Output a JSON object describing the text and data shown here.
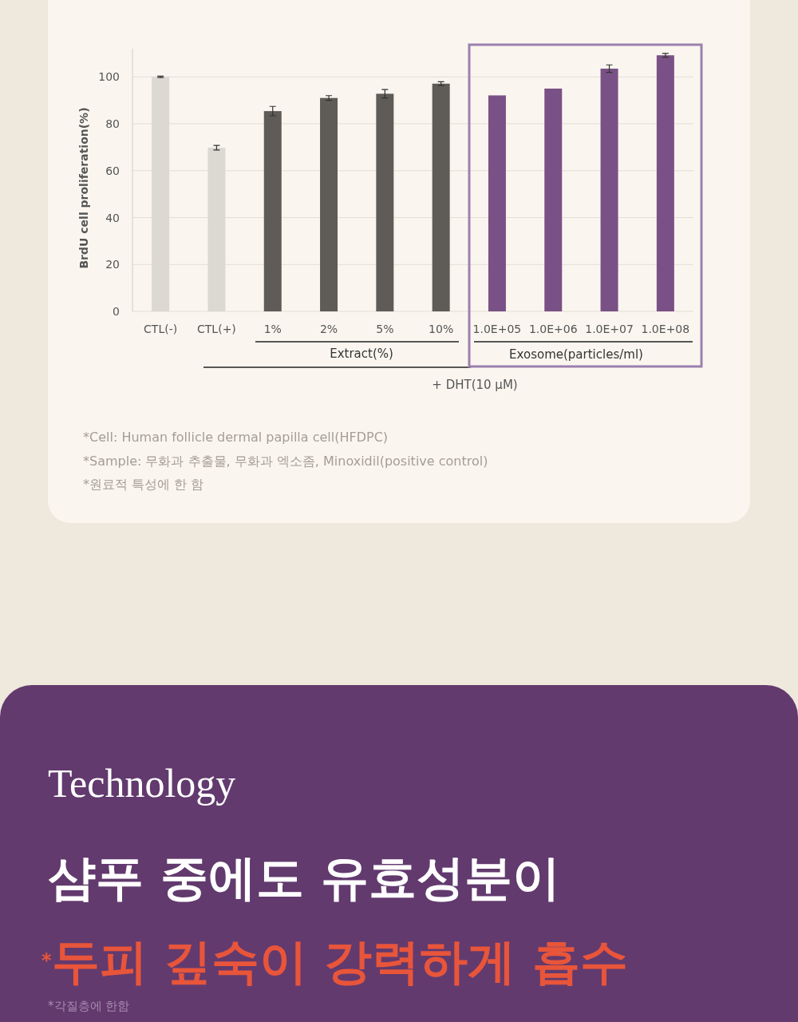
{
  "chart_data": {
    "type": "bar",
    "ylabel": "BrdU cell proliferation(%)",
    "categories": [
      "CTL(-)",
      "CTL(+)",
      "1%",
      "2%",
      "5%",
      "10%",
      "1.0E+05",
      "1.0E+06",
      "1.0E+07",
      "1.0E+08"
    ],
    "values": [
      100,
      69.8,
      85.4,
      91.0,
      92.8,
      97.1,
      92.1,
      95.0,
      103.5,
      109.2
    ],
    "errors": [
      0.3,
      1.0,
      2.0,
      1.0,
      1.8,
      0.8,
      null,
      null,
      1.6,
      0.8
    ],
    "colors": [
      "#dcd8d2",
      "#dcd8d2",
      "#5f5c58",
      "#5f5c58",
      "#5f5c58",
      "#5f5c58",
      "#7a5186",
      "#7a5186",
      "#7a5186",
      "#7a5186"
    ],
    "ylim": [
      0,
      112
    ],
    "yticks": [
      0,
      20,
      40,
      60,
      80,
      100
    ],
    "grid": "y",
    "annotations": [
      "Extract(%)",
      "Exosome(particles/ml)",
      "+ DHT(10 μM)",
      "*Cell: Human follicle dermal papilla cell(HFDPC)",
      "*Sample: 무화과 추출물, 무화과 엑소좀, Minoxidil(positive control)",
      "*원료적 특성에 한 함",
      "Technology",
      "샴푸 중에도 유효성분이",
      "$^{*}$두피 깊숙이 강력하게 흡수",
      "*각질층에 한함"
    ]
  }
}
